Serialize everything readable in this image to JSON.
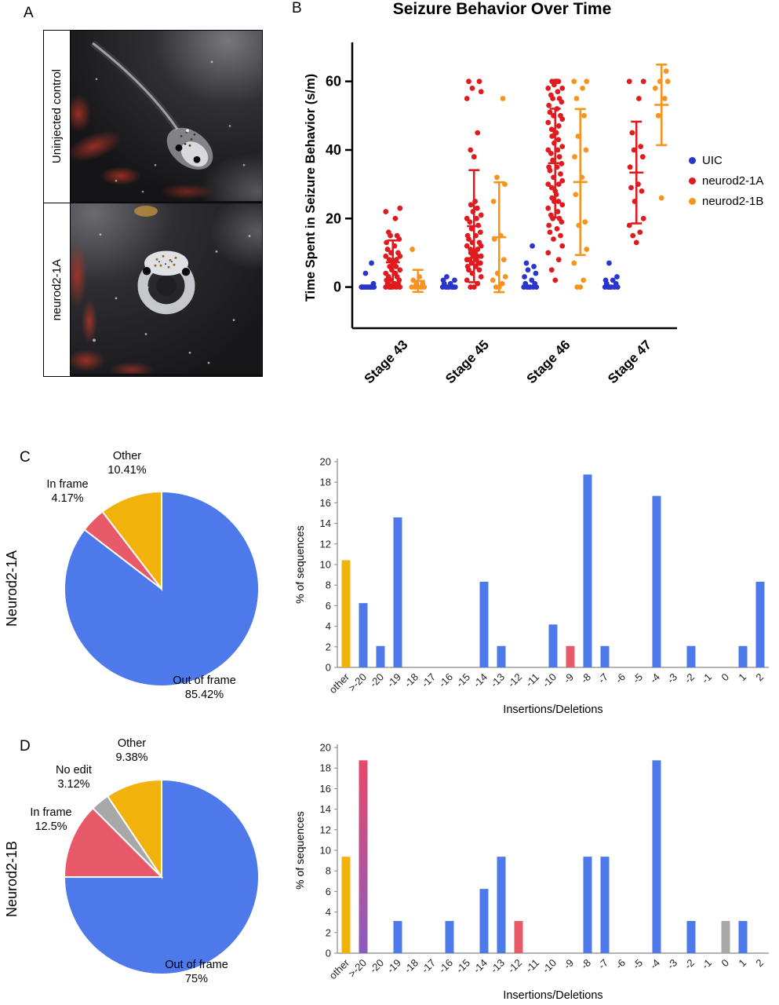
{
  "figure": {
    "panels": {
      "a": "A",
      "b": "B",
      "c": "C",
      "d": "D"
    }
  },
  "panel_a": {
    "rows": [
      {
        "label": "Uninjected control"
      },
      {
        "label": "neurod2-1A"
      }
    ]
  },
  "panel_c": {
    "row_label": "Neurod2-1A"
  },
  "panel_d": {
    "row_label": "Neurod2-1B"
  },
  "chart_data": [
    {
      "id": "seizure_scatter",
      "type": "scatter",
      "title": "Seizure Behavior Over Time",
      "ylabel": "Time Spent in Seizure Behavior (s/m)",
      "categories": [
        "Stage 43",
        "Stage 45",
        "Stage 46",
        "Stage 47"
      ],
      "ylim": [
        -12,
        70
      ],
      "yticks": [
        0,
        20,
        40,
        60
      ],
      "legend_position": "right",
      "series": [
        {
          "name": "UIC",
          "color": "#2a35cc",
          "errorbars": false,
          "values": [
            [
              0,
              0,
              0,
              0,
              0,
              0,
              0,
              0,
              0,
              0,
              1,
              4,
              7
            ],
            [
              0,
              0,
              0,
              0,
              0,
              0,
              0,
              1,
              1,
              2,
              2,
              3
            ],
            [
              0,
              0,
              0,
              0,
              0,
              0,
              1,
              1,
              2,
              3,
              4,
              5,
              6,
              7,
              12
            ],
            [
              0,
              0,
              0,
              0,
              0,
              0,
              1,
              1,
              2,
              2,
              3,
              7
            ]
          ]
        },
        {
          "name": "neurod2-1A",
          "color": "#e01b1f",
          "errorbars": true,
          "values": [
            [
              0,
              0,
              0,
              0,
              0,
              0,
              1,
              1,
              1,
              2,
              2,
              2,
              3,
              3,
              4,
              4,
              5,
              5,
              6,
              6,
              7,
              7,
              8,
              8,
              9,
              9,
              10,
              10,
              11,
              12,
              13,
              14,
              15,
              15,
              16,
              20,
              22,
              23
            ],
            [
              0,
              0,
              1,
              2,
              3,
              4,
              5,
              5,
              6,
              6,
              7,
              7,
              7,
              8,
              8,
              8,
              9,
              9,
              9,
              10,
              10,
              10,
              11,
              11,
              12,
              12,
              13,
              13,
              14,
              15,
              15,
              16,
              17,
              18,
              19,
              20,
              20,
              21,
              22,
              23,
              24,
              25,
              38,
              40,
              45,
              55,
              57,
              58,
              60,
              60
            ],
            [
              2,
              5,
              8,
              10,
              12,
              14,
              15,
              16,
              17,
              18,
              19,
              20,
              20,
              21,
              22,
              23,
              24,
              25,
              25,
              26,
              27,
              28,
              29,
              30,
              30,
              31,
              32,
              33,
              34,
              35,
              35,
              36,
              37,
              38,
              39,
              40,
              40,
              41,
              42,
              43,
              44,
              45,
              45,
              46,
              47,
              48,
              49,
              50,
              50,
              51,
              52,
              53,
              54,
              55,
              55,
              56,
              57,
              58,
              58,
              59,
              60,
              60,
              60,
              60
            ],
            [
              13,
              15,
              16,
              18,
              20,
              25,
              28,
              29,
              30,
              35,
              38,
              40,
              41,
              45,
              55,
              60,
              60
            ]
          ]
        },
        {
          "name": "neurod2-1B",
          "color": "#f6941f",
          "errorbars": true,
          "values": [
            [
              0,
              0,
              0,
              0,
              0,
              1,
              1,
              2,
              3,
              11
            ],
            [
              0,
              0,
              1,
              2,
              3,
              4,
              8,
              14,
              15,
              25,
              30,
              32,
              55
            ],
            [
              0,
              0,
              2,
              7,
              11,
              18,
              19,
              27,
              32,
              38,
              40,
              44,
              50,
              55,
              58,
              60,
              60
            ],
            [
              26,
              50,
              55,
              58,
              60,
              60,
              63
            ]
          ]
        }
      ]
    },
    {
      "id": "pie_neurod2_1a",
      "type": "pie",
      "slices": [
        {
          "label": "Out of frame",
          "pct_text": "85.42%",
          "value": 85.42,
          "color": "#4d79ea"
        },
        {
          "label": "In frame",
          "pct_text": "4.17%",
          "value": 4.17,
          "color": "#e8596a"
        },
        {
          "label": "Other",
          "pct_text": "10.41%",
          "value": 10.41,
          "color": "#f2b20c"
        }
      ]
    },
    {
      "id": "indels_neurod2_1a",
      "type": "bar",
      "ylabel": "% of sequences",
      "xlabel": "Insertions/Deletions",
      "ylim": [
        0,
        20
      ],
      "ytick_step": 2,
      "categories": [
        "other",
        ">-20",
        "-20",
        "-19",
        "-18",
        "-17",
        "-16",
        "-15",
        "-14",
        "-13",
        "-12",
        "-11",
        "-10",
        "-9",
        "-8",
        "-7",
        "-6",
        "-5",
        "-4",
        "-3",
        "-2",
        "-1",
        "0",
        "1",
        "2"
      ],
      "values": [
        10.42,
        6.25,
        2.08,
        14.58,
        0,
        0,
        0,
        0,
        8.33,
        2.08,
        0,
        0,
        4.17,
        2.08,
        18.75,
        2.08,
        0,
        0,
        16.67,
        0,
        2.08,
        0,
        0,
        2.08,
        8.33
      ],
      "colors": [
        "#f2b20c",
        null,
        null,
        null,
        null,
        null,
        null,
        null,
        null,
        null,
        null,
        null,
        null,
        "#e8596a",
        null,
        null,
        null,
        null,
        null,
        null,
        null,
        null,
        null,
        null,
        null
      ],
      "default_color": "#4d79ea"
    },
    {
      "id": "pie_neurod2_1b",
      "type": "pie",
      "slices": [
        {
          "label": "Out of frame",
          "pct_text": "75%",
          "value": 75,
          "color": "#4d79ea"
        },
        {
          "label": "In frame",
          "pct_text": "12.5%",
          "value": 12.5,
          "color": "#e8596a"
        },
        {
          "label": "No edit",
          "pct_text": "3.12%",
          "value": 3.12,
          "color": "#a8a8a8"
        },
        {
          "label": "Other",
          "pct_text": "9.38%",
          "value": 9.38,
          "color": "#f2b20c"
        }
      ]
    },
    {
      "id": "indels_neurod2_1b",
      "type": "bar",
      "ylabel": "% of sequences",
      "xlabel": "Insertions/Deletions",
      "ylim": [
        0,
        20
      ],
      "ytick_step": 2,
      "categories": [
        "other",
        ">-20",
        "-20",
        "-19",
        "-18",
        "-17",
        "-16",
        "-15",
        "-14",
        "-13",
        "-12",
        "-11",
        "-10",
        "-9",
        "-8",
        "-7",
        "-6",
        "-5",
        "-4",
        "-3",
        "-2",
        "-1",
        "0",
        "1",
        "2"
      ],
      "values": [
        9.38,
        18.75,
        0,
        3.13,
        0,
        0,
        3.13,
        0,
        6.25,
        9.38,
        3.13,
        0,
        0,
        0,
        9.38,
        9.38,
        0,
        0,
        18.75,
        0,
        3.13,
        0,
        3.13,
        3.13,
        0
      ],
      "colors": [
        "#f2b20c",
        [
          "#e8486a",
          "#8a5cc0"
        ],
        null,
        null,
        null,
        null,
        null,
        null,
        null,
        null,
        "#e8596a",
        null,
        null,
        null,
        null,
        null,
        null,
        null,
        null,
        null,
        null,
        null,
        "#a8a8a8",
        null,
        null
      ],
      "default_color": "#4d79ea"
    }
  ]
}
